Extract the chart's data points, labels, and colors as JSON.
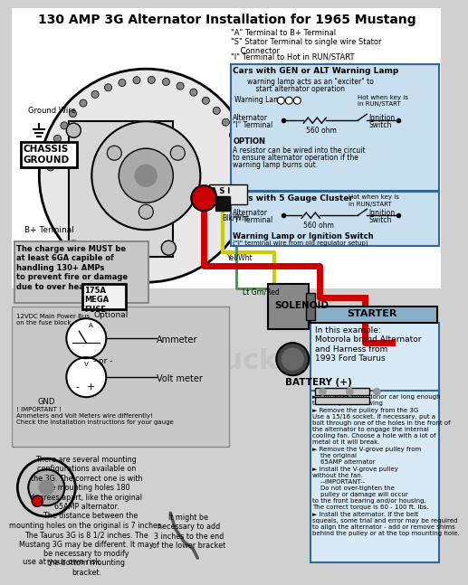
{
  "title": "130 AMP 3G Alternator Installation for 1965 Mustang",
  "bg_color": "#d0d0d0",
  "white_bg": "#ffffff",
  "title_color": "#000000",
  "title_fontsize": 9.5,
  "terminal_labels": [
    "\"A\" Terminal to B+ Terminal",
    "\"S\" Stator Terminal to single wire Stator\n    Connector",
    "\"I\" Terminal to Hot in RUN/START"
  ],
  "box_gen_alt_title": "Cars with GEN or ALT Warning Lamp",
  "box_gen_alt_text": "warning lamp acts as an \"exciter\" to\n    start alternator operation",
  "box_gen_alt_color": "#c8dff0",
  "option_text": "OPTION\nA resistor can be wired into the circuit\nto ensure alternator operation if the\nwarning lamp burns out.",
  "box_5gauge_title": "Cars with 5 Gauge Cluster",
  "box_5gauge_note": "Hot when key is\nin RUN/START",
  "charge_wire_text": "The charge wire MUST be\nat least 6GA capible of\nhandling 130+ AMPs\nto prevent fire or damage\ndue to over heating",
  "fuse_label": "175A\nMEGA\nFUSE",
  "solenoid_label": "SOLENOID",
  "starter_label": "STARTER",
  "starter_box_color": "#8ab0c8",
  "starter_example_title": "In this example:\nMotorola brand Alternator\nand Harness from\n1993 Ford Taurus",
  "starter_bullets": [
    "Clip wires from donor car long enough\nto modify like drawing",
    "Remove the pulley from the 3G\nUse a 15/16 socket. If necessary, put a\nbolt through one of the holes in the front of\nthe alternator to engage the internal\ncooling fan. Choose a hole with a lot of\nmetal ot it will break.",
    "Remove the V-grove pulley from\n    the original\n    65AMP alternator",
    "Install the V-grove pulley\nwithout the fan.\n    --IMPORTANT--\n    Do not over-tighten the\n    pulley or damage will occur\nto the front bearing and/or housing.\nThe correct torque is 60 - 100 ft. lbs.",
    "Install the alternator. If the belt\nsqueals, some trial and error may be required\nto align the alternator - add or remove shims\nbehind the pulley or at the top mounting hole."
  ],
  "optional_text": "Optional",
  "vdc_text": "12VDC Main Power Bus\non the fuse block",
  "ammeter_label": "Ammeter",
  "or_label": "- or -",
  "voltmeter_label": "Volt meter",
  "gnd_label": "GND",
  "important_text": "! IMPORTANT !\nAmmeters and Volt Meters wire differently!\nCheck the installation instructions for your gauge",
  "battery_label": "BATTERY (+)",
  "mounting_text": "There are several mounting\nconfigurations available on\nthe 3G. The correct one is with\nthe mounting holes 180\ndegrees apart, like the original\n65AMP alternator.\n    The distance between the\nmounting holes on the original is 7 inches.\nThe Taurus 3G is 8 1/2 inches. The\nMustang 3G may be different. It may\nbe necessary to modify\nthe bottom mounting\nbracket.",
  "lower_bracket_text": "It might be\nnecessary to add\n3 inches to the end\nof the lower bracket",
  "risk_text": "use at your own risk",
  "wire_labels": {
    "blk_wht": "Blk/Wht",
    "yel_wht": "Yel/Wht",
    "lt_grn_red": "Lt Grn/Red"
  },
  "warning_lamp_ign_text": "Warning Lamp or Ignition Switch\n(\"I\" terminal wire from old regulator setup)",
  "b_plus_terminal": "B+ Terminal",
  "ground_wire": "Ground Wire",
  "chassis_ground": "CHASSIS\nGROUND",
  "as1_label": "A S I"
}
